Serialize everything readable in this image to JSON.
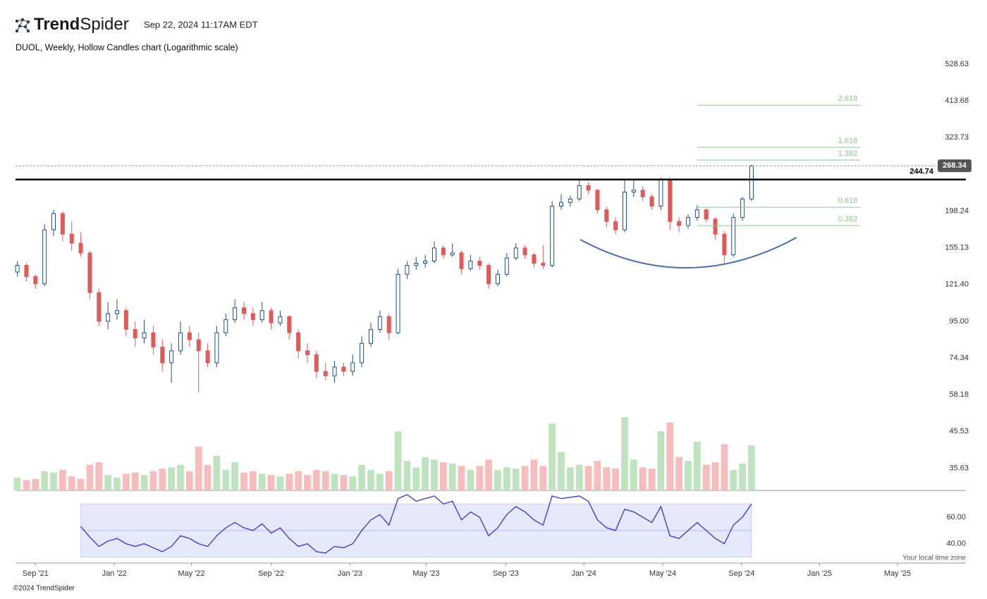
{
  "header": {
    "brand_bold": "Trend",
    "brand_light": "Spider",
    "timestamp": "Sep 22, 2024 11:17AM EDT"
  },
  "footer": "©2024 TrendSpider",
  "chart_data": {
    "type": "candlestick",
    "title": "DUOL, Weekly, Hollow Candles chart (Logarithmic scale)",
    "log_scale": true,
    "up_color": "#1f4e8c",
    "down_color": "#e05a5a",
    "volume_up_color": "#bfe3bf",
    "volume_down_color": "#f7bcbc",
    "open": [
      132,
      138,
      128,
      122,
      175,
      195,
      170,
      160,
      150,
      115,
      95,
      100,
      102,
      90,
      85,
      88,
      80,
      72,
      78,
      88,
      84,
      78,
      72,
      88,
      96,
      104,
      100,
      96,
      102,
      94,
      98,
      88,
      78,
      76,
      68,
      66,
      70,
      68,
      72,
      82,
      90,
      98,
      88,
      130,
      138,
      140,
      142,
      155,
      148,
      150,
      135,
      142,
      138,
      122,
      130,
      145,
      155,
      148,
      140,
      138,
      205,
      210,
      215,
      235,
      228,
      200,
      185,
      175,
      225,
      228,
      218,
      205,
      245,
      185,
      180,
      190,
      200,
      188,
      170,
      148,
      190,
      215
    ],
    "high": [
      142,
      140,
      130,
      182,
      200,
      198,
      185,
      172,
      152,
      118,
      108,
      110,
      104,
      95,
      96,
      92,
      84,
      82,
      95,
      92,
      88,
      82,
      92,
      100,
      110,
      108,
      104,
      108,
      104,
      102,
      99,
      90,
      82,
      78,
      72,
      73,
      72,
      76,
      86,
      94,
      102,
      100,
      135,
      142,
      146,
      148,
      162,
      158,
      160,
      152,
      148,
      146,
      140,
      134,
      150,
      160,
      158,
      150,
      158,
      212,
      222,
      220,
      244,
      240,
      230,
      204,
      190,
      245,
      245,
      234,
      222,
      248,
      248,
      190,
      194,
      206,
      202,
      190,
      174,
      195,
      218,
      270
    ],
    "low": [
      128,
      124,
      118,
      120,
      168,
      162,
      152,
      146,
      110,
      92,
      90,
      96,
      86,
      80,
      82,
      76,
      68,
      63,
      76,
      80,
      59,
      70,
      70,
      86,
      94,
      96,
      92,
      94,
      90,
      92,
      84,
      74,
      72,
      65,
      64,
      63,
      66,
      66,
      70,
      80,
      88,
      84,
      87,
      126,
      134,
      136,
      140,
      144,
      146,
      130,
      133,
      134,
      118,
      120,
      128,
      143,
      144,
      136,
      135,
      136,
      200,
      204,
      212,
      222,
      195,
      178,
      170,
      172,
      218,
      212,
      200,
      200,
      175,
      172,
      176,
      186,
      184,
      164,
      140,
      146,
      186,
      212
    ],
    "close": [
      138,
      128,
      122,
      175,
      195,
      170,
      160,
      150,
      115,
      95,
      100,
      102,
      90,
      85,
      88,
      80,
      72,
      78,
      88,
      84,
      78,
      72,
      88,
      96,
      104,
      100,
      96,
      102,
      94,
      98,
      88,
      78,
      76,
      68,
      66,
      70,
      68,
      72,
      82,
      90,
      98,
      88,
      130,
      138,
      140,
      142,
      155,
      148,
      150,
      135,
      142,
      138,
      122,
      130,
      145,
      155,
      148,
      140,
      138,
      205,
      210,
      215,
      235,
      228,
      200,
      185,
      175,
      225,
      228,
      218,
      205,
      245,
      185,
      180,
      190,
      200,
      188,
      170,
      148,
      190,
      215,
      268
    ],
    "volume": [
      1.0,
      0.8,
      0.9,
      1.5,
      1.4,
      1.6,
      1.1,
      0.9,
      2.0,
      2.2,
      1.2,
      1.0,
      1.3,
      1.4,
      1.2,
      1.5,
      1.7,
      1.8,
      2.0,
      1.5,
      3.4,
      2.0,
      2.7,
      1.6,
      2.2,
      1.4,
      1.5,
      1.3,
      1.2,
      1.1,
      1.3,
      1.5,
      1.2,
      1.6,
      1.5,
      1.3,
      1.2,
      1.1,
      2.0,
      1.6,
      1.3,
      1.5,
      4.6,
      2.3,
      1.8,
      2.6,
      2.4,
      2.2,
      2.1,
      1.9,
      1.6,
      1.9,
      2.4,
      1.6,
      1.8,
      1.7,
      1.9,
      2.4,
      1.9,
      5.2,
      3.0,
      1.8,
      2.0,
      1.9,
      2.3,
      1.8,
      1.7,
      5.7,
      2.4,
      1.8,
      1.7,
      4.6,
      5.3,
      2.6,
      2.3,
      3.8,
      2.0,
      2.2,
      3.6,
      1.6,
      2.1,
      3.5
    ],
    "rsi": [
      null,
      null,
      null,
      null,
      null,
      null,
      null,
      53,
      45,
      38,
      42,
      44,
      40,
      38,
      40,
      37,
      34,
      38,
      46,
      44,
      40,
      38,
      46,
      52,
      56,
      52,
      50,
      55,
      48,
      52,
      44,
      38,
      40,
      34,
      33,
      38,
      37,
      40,
      50,
      58,
      62,
      54,
      74,
      77,
      72,
      74,
      76,
      70,
      72,
      58,
      64,
      60,
      46,
      52,
      62,
      68,
      64,
      58,
      54,
      76,
      74,
      75,
      76,
      72,
      58,
      52,
      50,
      66,
      64,
      60,
      56,
      68,
      46,
      44,
      50,
      56,
      50,
      44,
      40,
      54,
      60,
      70
    ],
    "rsi_color": "#3535c8",
    "rsi_band": [
      30,
      70
    ],
    "rsi_band_color": "#e6e9fa",
    "rsi_ylim": [
      26,
      78
    ],
    "rsi_yticks": [
      {
        "value": 60,
        "label": "60.00"
      },
      {
        "value": 40,
        "label": "40.00"
      }
    ],
    "ylim": [
      30.7,
      557
    ],
    "yticks": [
      528.63,
      413.68,
      323.73,
      198.24,
      155.13,
      {
        "value": 121.4,
        "label": "121.40"
      },
      {
        "value": 95,
        "label": "95.00"
      },
      74.34,
      58.18,
      45.53,
      35.63
    ],
    "xlim": [
      -0.2,
      102
    ],
    "xticks": [
      {
        "value": 2.0,
        "label": "Sep '21"
      },
      {
        "value": 10.7,
        "label": "Jan '22"
      },
      {
        "value": 19.2,
        "label": "May '22"
      },
      {
        "value": 28.0,
        "label": "Sep '22"
      },
      {
        "value": 36.7,
        "label": "Jan '23"
      },
      {
        "value": 45.1,
        "label": "May '23"
      },
      {
        "value": 53.9,
        "label": "Sep '23"
      },
      {
        "value": 62.5,
        "label": "Jan '24"
      },
      {
        "value": 71.2,
        "label": "May '24"
      },
      {
        "value": 79.9,
        "label": "Sep '24"
      },
      {
        "value": 88.5,
        "label": "Jan '25"
      },
      {
        "value": 97.1,
        "label": "May '25"
      }
    ],
    "x_note": "Your local time zone",
    "resistance": 244.74,
    "last_price": 268.34,
    "fib_color": "#8cc88c",
    "fib_x": [
      75,
      93
    ],
    "fib_levels": [
      {
        "label": "2.618",
        "value": 402
      },
      {
        "label": "1.618",
        "value": 303.5
      },
      {
        "label": "1.382",
        "value": 278.7
      },
      {
        "label": "0.618",
        "value": 203.4
      },
      {
        "label": "0.382",
        "value": 180
      }
    ]
  }
}
